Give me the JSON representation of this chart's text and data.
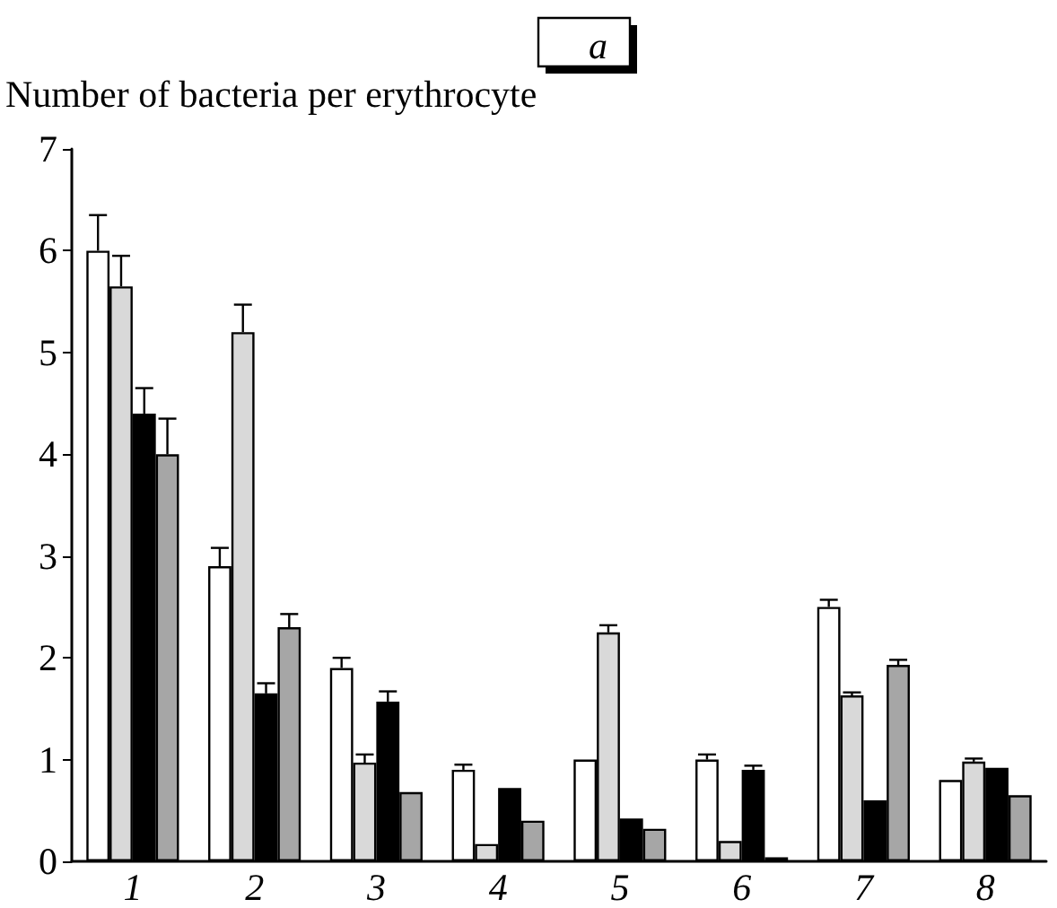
{
  "chart_data": {
    "type": "bar",
    "title": "a",
    "ylabel": "Number of bacteria per erythrocyte",
    "categories": [
      "1",
      "2",
      "3",
      "4",
      "5",
      "6",
      "7",
      "8"
    ],
    "series": [
      {
        "color": "#ffffff",
        "values": [
          6.0,
          2.9,
          1.9,
          0.9,
          1.0,
          1.0,
          2.5,
          0.8
        ],
        "errors": [
          [
            6.0,
            6.35
          ],
          [
            2.9,
            3.08
          ],
          [
            1.9,
            2.0
          ],
          [
            0.9,
            0.95
          ],
          null,
          [
            1.0,
            1.05
          ],
          [
            2.5,
            2.57
          ],
          null
        ]
      },
      {
        "color": "#d9d9d9",
        "values": [
          5.65,
          5.2,
          0.97,
          0.17,
          2.25,
          0.2,
          1.63,
          0.98
        ],
        "errors": [
          [
            5.65,
            5.95
          ],
          [
            5.2,
            5.47
          ],
          [
            0.97,
            1.05
          ],
          null,
          [
            2.25,
            2.32
          ],
          null,
          [
            1.63,
            1.66
          ],
          [
            0.98,
            1.01
          ]
        ]
      },
      {
        "color": "#000000",
        "values": [
          4.4,
          1.65,
          1.57,
          0.72,
          0.42,
          0.9,
          0.6,
          0.92
        ],
        "errors": [
          [
            4.4,
            4.65
          ],
          [
            1.65,
            1.75
          ],
          [
            1.57,
            1.67
          ],
          null,
          null,
          [
            0.9,
            0.94
          ],
          null,
          null
        ]
      },
      {
        "color": "#a6a6a6",
        "values": [
          4.0,
          2.3,
          0.68,
          0.4,
          0.32,
          0.04,
          1.93,
          0.65
        ],
        "errors": [
          [
            4.0,
            4.35
          ],
          [
            2.3,
            2.43
          ],
          null,
          null,
          null,
          null,
          [
            1.93,
            1.98
          ],
          null
        ]
      }
    ],
    "ylim": [
      0,
      7
    ],
    "yticks": [
      0,
      1,
      2,
      3,
      4,
      5,
      6,
      7
    ],
    "grid": false
  }
}
